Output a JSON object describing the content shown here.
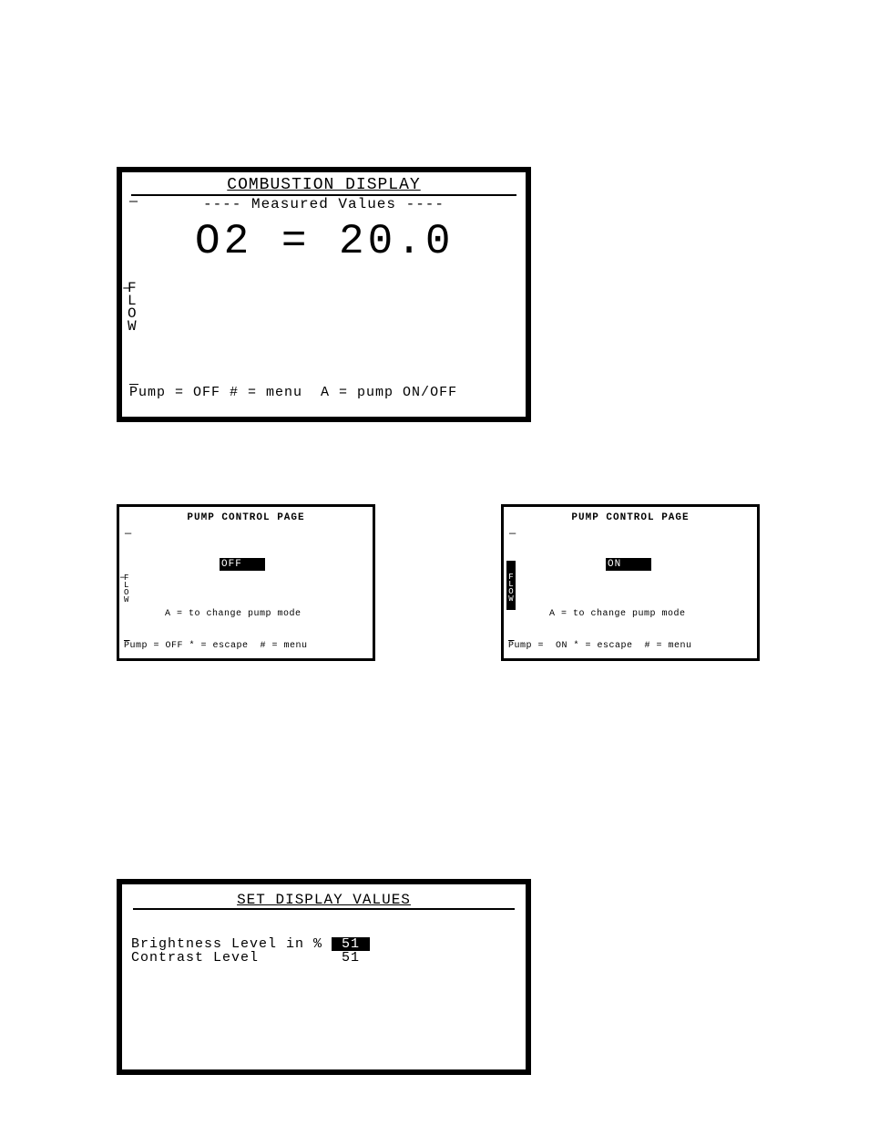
{
  "combustion": {
    "title": "COMBUSTION DISPLAY",
    "subtitle": "---- Measured Values ----",
    "reading": "O2 =  20.0",
    "flow_label": "FLOW",
    "status": "Pump = OFF # = menu  A = pump ON/OFF",
    "dash": "—"
  },
  "pump_off": {
    "title": "PUMP CONTROL PAGE",
    "mode": "OFF",
    "flow_label": "FLOW",
    "instruction": "A = to change pump mode",
    "status": "Pump = OFF * = escape  # = menu",
    "dash": "—"
  },
  "pump_on": {
    "title": "PUMP CONTROL PAGE",
    "mode": "ON",
    "flow_label": "FLOW",
    "instruction": "A = to change pump mode",
    "status": "Pump =  ON * = escape  # = menu",
    "dash": "—"
  },
  "display_vals": {
    "title": "SET DISPLAY VALUES",
    "brightness_label": "Brightness Level in %",
    "brightness_value": "51",
    "contrast_label": "Contrast Level",
    "contrast_value": "51"
  },
  "style": {
    "bg": "#ffffff",
    "fg": "#000000",
    "panel_border_width_large": 6,
    "panel_border_width_small": 3,
    "big_fontsize": 46,
    "title_fontsize": 18,
    "small_title_fontsize": 11,
    "status_fontsize": 15,
    "small_status_fontsize": 10
  }
}
